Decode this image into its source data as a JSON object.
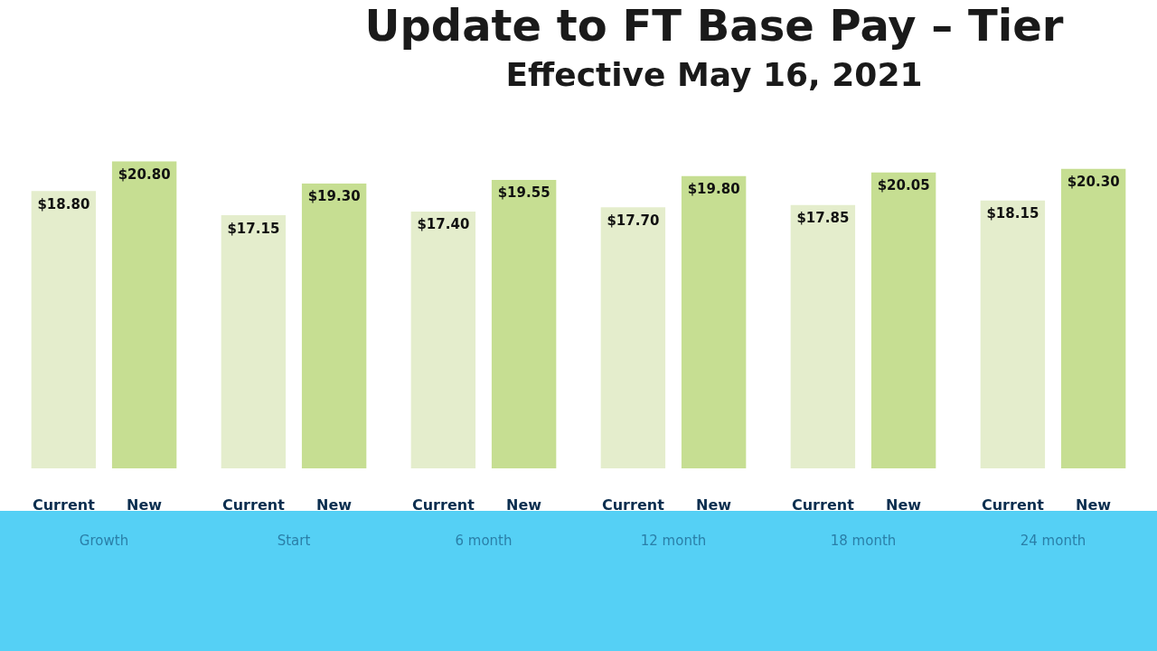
{
  "chart_data": {
    "type": "bar",
    "title": "Update to FT Base Pay – Tier",
    "subtitle": "Effective May 16, 2021",
    "categories": [
      "Growth",
      "Start",
      "6 month",
      "12 month",
      "18 month",
      "24 month"
    ],
    "series": [
      {
        "name": "Current",
        "color": "#e4edcc",
        "values": [
          18.8,
          17.15,
          17.4,
          17.7,
          17.85,
          18.15
        ],
        "value_labels": [
          "$18.80",
          "$17.15",
          "$17.40",
          "$17.70",
          "$17.85",
          "$18.15"
        ]
      },
      {
        "name": "New",
        "color": "#c6de92",
        "values": [
          20.8,
          19.3,
          19.55,
          19.8,
          20.05,
          20.3
        ],
        "value_labels": [
          "$20.80",
          "$19.30",
          "$19.55",
          "$19.80",
          "$20.05",
          "$20.30"
        ]
      }
    ],
    "legend": false,
    "grid": false
  }
}
